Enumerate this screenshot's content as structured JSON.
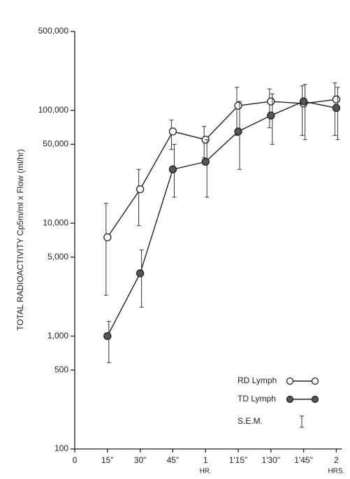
{
  "chart_data": {
    "type": "line",
    "y_label": "TOTAL RADIOACTIVITY  Cp5m/ml x Flow (ml/hr)",
    "categories": [
      "0",
      "15\"",
      "30\"",
      "45\"",
      "1",
      "1'15\"",
      "1'30\"",
      "1'45\"",
      "2"
    ],
    "category_sublabels": [
      null,
      null,
      null,
      null,
      "HR.",
      null,
      null,
      null,
      "HRS."
    ],
    "log_y": true,
    "ylim": [
      100,
      500000
    ],
    "yticks": [
      100,
      500,
      {
        "value": 1000,
        "label": "1,000"
      },
      {
        "value": 5000,
        "label": "5,000"
      },
      {
        "value": 10000,
        "label": "10,000"
      },
      {
        "value": 50000,
        "label": "50,000"
      },
      {
        "value": 100000,
        "label": "100,000"
      },
      {
        "value": 500000,
        "label": "500,000"
      }
    ],
    "series": [
      {
        "name": "RD Lymph",
        "color": "#ffffff",
        "values": [
          null,
          7500,
          20000,
          65000,
          55000,
          110000,
          120000,
          115000,
          125000
        ],
        "error_low": [
          null,
          2300,
          9500,
          45000,
          38000,
          60000,
          70000,
          60000,
          60000
        ],
        "error_high": [
          null,
          15000,
          30000,
          82000,
          72000,
          160000,
          155000,
          165000,
          175000
        ]
      },
      {
        "name": "TD Lymph",
        "color": "#555555",
        "values": [
          null,
          1000,
          3600,
          30000,
          35000,
          65000,
          90000,
          120000,
          105000
        ],
        "error_low": [
          null,
          580,
          1800,
          17000,
          17000,
          30000,
          50000,
          55000,
          55000
        ],
        "error_high": [
          null,
          1350,
          5800,
          50000,
          55000,
          120000,
          140000,
          170000,
          160000
        ]
      }
    ],
    "error_legend": "S.E.M.",
    "legend": "lower right"
  }
}
